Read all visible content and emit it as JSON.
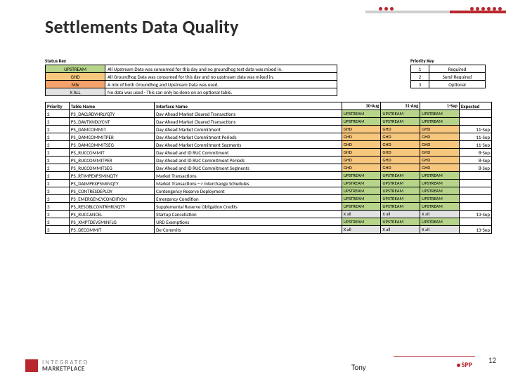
{
  "colors": {
    "upstream": "#b7d58a",
    "ghd": "#f7c77e",
    "mix": "#f2a26a",
    "xall": "#e2e2e2",
    "header_bg": "#ffffff",
    "accent_red": "#b8272d",
    "decor_gray": "#cfcfcf"
  },
  "title": "Settlements Data Quality",
  "status_key": {
    "header": "Status Key",
    "rows": [
      {
        "code": "UPSTREAM",
        "color_key": "upstream",
        "desc": "All Upstream Data was consumed for this day and no groundhog test data was mixed in."
      },
      {
        "code": "GHD",
        "color_key": "ghd",
        "desc": "All Groundhog Data was consumed for this day and no upstream data was mixed in."
      },
      {
        "code": "Mix",
        "color_key": "mix",
        "desc": "A mix of both Groundhog and Upstream Data was used."
      },
      {
        "code": "X ALL",
        "color_key": "xall",
        "desc": "No data was used - This can only be done on an optional table."
      }
    ]
  },
  "priority_key": {
    "header": "Priority Key",
    "rows": [
      {
        "code": "1",
        "label": "Required"
      },
      {
        "code": "2",
        "label": "Semi-Required"
      },
      {
        "code": "3",
        "label": "Optional"
      }
    ]
  },
  "main_table": {
    "columns": [
      "Priority",
      "Table Name",
      "Interface Name",
      "30-Aug",
      "31-Aug",
      "1-Sep",
      "Expected"
    ],
    "rows": [
      {
        "priority": "2",
        "table": "PS_DACLRDVHRLYQTY",
        "iface": "Day-Ahead Market Cleared Transactions",
        "d": [
          "upstream",
          "upstream",
          "upstream"
        ],
        "expected": ""
      },
      {
        "priority": "2",
        "table": "PS_DAVTXNDLYCNT",
        "iface": "Day-Ahead Market Cleared Transactions",
        "d": [
          "upstream",
          "upstream",
          "upstream"
        ],
        "expected": ""
      },
      {
        "priority": "2",
        "table": "PS_DAMCOMMIT",
        "iface": "Day Ahead Market Commitment",
        "d": [
          "ghd",
          "ghd",
          "ghd"
        ],
        "expected": "11-Sep"
      },
      {
        "priority": "2",
        "table": "PS_DAMCOMMITPER",
        "iface": "Day Ahead Market Commitment Periods",
        "d": [
          "ghd",
          "ghd",
          "ghd"
        ],
        "expected": "11-Sep"
      },
      {
        "priority": "2",
        "table": "PS_DAMCOMMITSEG",
        "iface": "Day Ahead Market Commitment Segments",
        "d": [
          "ghd",
          "ghd",
          "ghd"
        ],
        "expected": "11-Sep"
      },
      {
        "priority": "2",
        "table": "PS_RUCCOMMIT",
        "iface": "Day Ahead and ID RUC Commitment",
        "d": [
          "ghd",
          "ghd",
          "ghd"
        ],
        "expected": "8-Sep"
      },
      {
        "priority": "2",
        "table": "PS_RUCCOMMITPER",
        "iface": "Day Ahead and ID RUC Commitment Periods",
        "d": [
          "ghd",
          "ghd",
          "ghd"
        ],
        "expected": "8-Sep"
      },
      {
        "priority": "2",
        "table": "PS_RUCCOMMITSEG",
        "iface": "Day Ahead and ID RUC Commitment Segments",
        "d": [
          "ghd",
          "ghd",
          "ghd"
        ],
        "expected": "8-Sep"
      },
      {
        "priority": "2",
        "table": "PS_RTIMPEXP5MINQTY",
        "iface": "Market Transactions",
        "d": [
          "upstream",
          "upstream",
          "upstream"
        ],
        "expected": ""
      },
      {
        "priority": "2",
        "table": "PS_DAIMPEXP5MINQTY",
        "iface": "Market Transactions --> Interchange Schedules",
        "d": [
          "upstream",
          "upstream",
          "upstream"
        ],
        "expected": ""
      },
      {
        "priority": "3",
        "table": "PS_CONTRESDEPLOY",
        "iface": "Contengency Reserve Deployment",
        "d": [
          "upstream",
          "upstream",
          "upstream"
        ],
        "expected": ""
      },
      {
        "priority": "3",
        "table": "PS_EMERGENCYCONDITION",
        "iface": "Emergency Condition",
        "d": [
          "upstream",
          "upstream",
          "upstream"
        ],
        "expected": ""
      },
      {
        "priority": "3",
        "table": "PS_RESOBLCONTRHRLYQTY",
        "iface": "Supplemental Reserve Obligation Credits",
        "d": [
          "upstream",
          "upstream",
          "upstream"
        ],
        "expected": ""
      },
      {
        "priority": "3",
        "table": "PS_RUCCANCEL",
        "iface": "Startup Cancellation",
        "d": [
          "xall",
          "xall",
          "xall"
        ],
        "expected": "13-Sep"
      },
      {
        "priority": "3",
        "table": "PS_XMPTDEV5MINFLG",
        "iface": "URD Exemptions",
        "d": [
          "upstream",
          "upstream",
          "upstream"
        ],
        "expected": ""
      },
      {
        "priority": "3",
        "table": "PS_DECOMMIT",
        "iface": "De-Commits",
        "d": [
          "xall",
          "xall",
          "xall"
        ],
        "expected": "13-Sep"
      }
    ]
  },
  "status_labels": {
    "upstream": "UPSTREAM",
    "ghd": "GHD",
    "mix": "Mix",
    "xall": "X all"
  },
  "footer": {
    "logo_left_line1": "INTEGRATED",
    "logo_left_line2": "MARKETPLACE",
    "presenter": "Tony",
    "spp": "SPP",
    "page": "12"
  }
}
